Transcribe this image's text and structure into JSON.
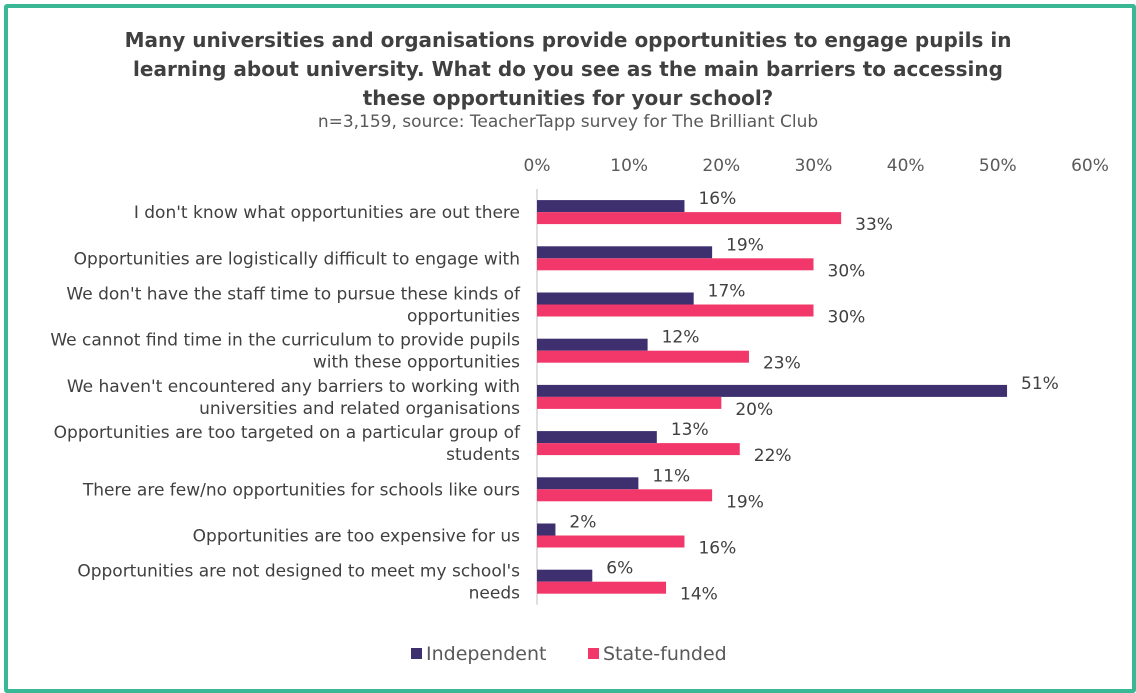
{
  "colors": {
    "frame": "#3ab795",
    "independent": "#3e2f6e",
    "state_funded": "#f2386a",
    "text": "#404040"
  },
  "chart_data": {
    "type": "bar",
    "orientation": "horizontal",
    "title": "Many universities and organisations provide opportunities to engage pupils in learning about university. What do you see as the main barriers to accessing these opportunities for your school?",
    "subtitle": "n=3,159, source: TeacherTapp survey for The Brilliant Club",
    "categories": [
      [
        "I don't know what opportunities are out there"
      ],
      [
        "Opportunities are logistically difficult to engage with"
      ],
      [
        "We don't have the staff time to pursue these kinds of",
        "opportunities"
      ],
      [
        "We cannot find time in the curriculum to provide pupils",
        "with these opportunities"
      ],
      [
        "We haven't encountered any barriers to working with",
        "universities and related organisations"
      ],
      [
        "Opportunities are too targeted on a particular group of",
        "students"
      ],
      [
        "There are few/no opportunities for schools like ours"
      ],
      [
        "Opportunities are too expensive for us"
      ],
      [
        "Opportunities are not designed to meet my school's",
        "needs"
      ]
    ],
    "series": [
      {
        "name": "Independent",
        "values": [
          16,
          19,
          17,
          12,
          51,
          13,
          11,
          2,
          6
        ]
      },
      {
        "name": "State-funded",
        "values": [
          33,
          30,
          30,
          23,
          20,
          22,
          19,
          16,
          14
        ]
      }
    ],
    "xlim": [
      0,
      60
    ],
    "xticks": [
      "0%",
      "10%",
      "20%",
      "30%",
      "40%",
      "50%",
      "60%"
    ],
    "value_suffix": "%",
    "axis_position": "top",
    "grid": false,
    "legend_position": "bottom"
  }
}
